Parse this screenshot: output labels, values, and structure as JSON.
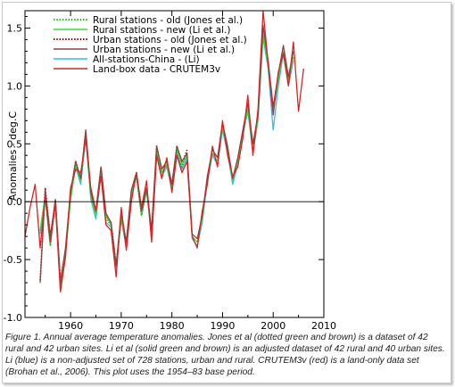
{
  "chart_data": {
    "type": "line",
    "title": "",
    "xlabel": "",
    "ylabel": "Anomalies - deg.C",
    "xlim": [
      1951,
      2010
    ],
    "ylim": [
      -1.0,
      1.65
    ],
    "x_ticks": [
      1960,
      1970,
      1980,
      1990,
      2000,
      2010
    ],
    "y_ticks": [
      -1.0,
      -0.5,
      0.0,
      0.5,
      1.0,
      1.5
    ],
    "x_tick_labels": [
      "1960",
      "1970",
      "1980",
      "1990",
      "2000",
      "2010"
    ],
    "y_tick_labels": [
      "-1.0",
      "-0.5",
      "0.0",
      "0.5",
      "1.0",
      "1.5"
    ],
    "zero_line": true,
    "legend_position": "top-left",
    "series": [
      {
        "name": "Rural stations - old (Jones et al.)",
        "color": "#00cc00",
        "style": "dotted",
        "x": [
          1954,
          1955,
          1956,
          1957,
          1958,
          1959,
          1960,
          1961,
          1962,
          1963,
          1964,
          1965,
          1966,
          1967,
          1968,
          1969,
          1970,
          1971,
          1972,
          1973,
          1974,
          1975,
          1976,
          1977,
          1978,
          1979,
          1980,
          1981,
          1982,
          1983
        ],
        "y": [
          -0.25,
          0.05,
          -0.38,
          0.02,
          -0.72,
          -0.45,
          0.05,
          0.33,
          0.18,
          0.58,
          0.05,
          -0.1,
          0.28,
          -0.15,
          -0.2,
          -0.55,
          -0.15,
          -0.38,
          0.05,
          0.22,
          -0.12,
          0.1,
          -0.3,
          0.45,
          0.25,
          0.32,
          0.12,
          0.45,
          0.3,
          0.42
        ]
      },
      {
        "name": "Rural stations - new (Li et al.)",
        "color": "#33dd33",
        "style": "solid",
        "x": [
          1954,
          1955,
          1956,
          1957,
          1958,
          1959,
          1960,
          1961,
          1962,
          1963,
          1964,
          1965,
          1966,
          1967,
          1968,
          1969,
          1970,
          1971,
          1972,
          1973,
          1974,
          1975,
          1976,
          1977,
          1978,
          1979,
          1980,
          1981,
          1982,
          1983,
          1984,
          1985,
          1986,
          1987,
          1988,
          1989,
          1990,
          1991,
          1992,
          1993,
          1994,
          1995,
          1996,
          1997,
          1998,
          1999,
          2000,
          2001,
          2002,
          2003,
          2004
        ],
        "y": [
          -0.25,
          0.05,
          -0.35,
          0.0,
          -0.7,
          -0.45,
          0.02,
          0.32,
          0.18,
          0.58,
          0.05,
          -0.12,
          0.28,
          -0.12,
          -0.2,
          -0.55,
          -0.12,
          -0.38,
          0.08,
          0.25,
          -0.1,
          0.12,
          -0.28,
          0.45,
          0.25,
          0.32,
          0.12,
          0.45,
          0.32,
          0.4,
          -0.3,
          -0.35,
          -0.15,
          0.2,
          0.42,
          0.35,
          0.65,
          0.45,
          0.18,
          0.35,
          0.6,
          0.8,
          0.45,
          0.72,
          1.45,
          1.18,
          0.78,
          1.05,
          1.3,
          1.05,
          1.25
        ]
      },
      {
        "name": "Urban stations - old (Jones et al.)",
        "color": "#990000",
        "style": "dotted",
        "x": [
          1954,
          1955,
          1956,
          1957,
          1958,
          1959,
          1960,
          1961,
          1962,
          1963,
          1964,
          1965,
          1966,
          1967,
          1968,
          1969,
          1970,
          1971,
          1972,
          1973,
          1974,
          1975,
          1976,
          1977,
          1978,
          1979,
          1980,
          1981,
          1982,
          1983
        ],
        "y": [
          -0.68,
          0.12,
          -0.3,
          0.0,
          -0.68,
          -0.42,
          0.08,
          0.35,
          0.2,
          0.6,
          0.08,
          -0.08,
          0.3,
          -0.12,
          -0.18,
          -0.55,
          -0.12,
          -0.35,
          0.08,
          0.25,
          -0.1,
          0.12,
          -0.25,
          0.48,
          0.28,
          0.35,
          0.15,
          0.48,
          0.32,
          0.45
        ]
      },
      {
        "name": "Urban stations - new (Li et al.)",
        "color": "#884444",
        "style": "solid",
        "x": [
          1954,
          1955,
          1956,
          1957,
          1958,
          1959,
          1960,
          1961,
          1962,
          1963,
          1964,
          1965,
          1966,
          1967,
          1968,
          1969,
          1970,
          1971,
          1972,
          1973,
          1974,
          1975,
          1976,
          1977,
          1978,
          1979,
          1980,
          1981,
          1982,
          1983,
          1984,
          1985,
          1986,
          1987,
          1988,
          1989,
          1990,
          1991,
          1992,
          1993,
          1994,
          1995,
          1996,
          1997,
          1998,
          1999,
          2000,
          2001,
          2002,
          2003,
          2004
        ],
        "y": [
          -0.7,
          0.1,
          -0.3,
          0.02,
          -0.7,
          -0.4,
          0.08,
          0.35,
          0.2,
          0.62,
          0.08,
          -0.08,
          0.3,
          -0.1,
          -0.18,
          -0.55,
          -0.1,
          -0.35,
          0.1,
          0.25,
          -0.08,
          0.12,
          -0.25,
          0.48,
          0.28,
          0.35,
          0.15,
          0.48,
          0.35,
          0.42,
          -0.28,
          -0.32,
          -0.12,
          0.22,
          0.45,
          0.38,
          0.68,
          0.48,
          0.2,
          0.38,
          0.62,
          0.85,
          0.5,
          0.75,
          1.52,
          1.22,
          0.82,
          1.1,
          1.35,
          1.08,
          1.3
        ]
      },
      {
        "name": "All-stations-China - (Li)",
        "color": "#33bbee",
        "style": "solid",
        "x": [
          1954,
          1955,
          1956,
          1957,
          1958,
          1959,
          1960,
          1961,
          1962,
          1963,
          1964,
          1965,
          1966,
          1967,
          1968,
          1969,
          1970,
          1971,
          1972,
          1973,
          1974,
          1975,
          1976,
          1977,
          1978,
          1979,
          1980,
          1981,
          1982,
          1983,
          1984,
          1985,
          1986,
          1987,
          1988,
          1989,
          1990,
          1991,
          1992,
          1993,
          1994,
          1995,
          1996,
          1997,
          1998,
          1999,
          2000,
          2001,
          2002,
          2003,
          2004
        ],
        "y": [
          -0.28,
          0.02,
          -0.38,
          0.0,
          -0.72,
          -0.45,
          0.02,
          0.3,
          0.15,
          0.55,
          0.02,
          -0.15,
          0.25,
          -0.18,
          -0.22,
          -0.58,
          -0.15,
          -0.4,
          0.05,
          0.22,
          -0.12,
          0.1,
          -0.3,
          0.42,
          0.22,
          0.3,
          0.1,
          0.42,
          0.28,
          0.38,
          -0.32,
          -0.38,
          -0.18,
          0.18,
          0.4,
          0.32,
          0.62,
          0.42,
          0.15,
          0.32,
          0.58,
          0.78,
          0.42,
          0.7,
          1.42,
          1.15,
          0.62,
          1.0,
          1.28,
          1.0,
          1.22
        ]
      },
      {
        "name": "Land-box data - CRUTEM3v",
        "color": "#dd2222",
        "style": "solid",
        "x": [
          1951,
          1952,
          1953,
          1954,
          1955,
          1956,
          1957,
          1958,
          1959,
          1960,
          1961,
          1962,
          1963,
          1964,
          1965,
          1966,
          1967,
          1968,
          1969,
          1970,
          1971,
          1972,
          1973,
          1974,
          1975,
          1976,
          1977,
          1978,
          1979,
          1980,
          1981,
          1982,
          1983,
          1984,
          1985,
          1986,
          1987,
          1988,
          1989,
          1990,
          1991,
          1992,
          1993,
          1994,
          1995,
          1996,
          1997,
          1998,
          1999,
          2000,
          2001,
          2002,
          2003,
          2004,
          2005,
          2006
        ],
        "y": [
          -0.3,
          -0.05,
          0.15,
          -0.4,
          0.05,
          -0.35,
          -0.02,
          -0.78,
          -0.48,
          0.12,
          0.28,
          0.25,
          0.55,
          0.12,
          -0.08,
          0.22,
          -0.2,
          -0.25,
          -0.65,
          -0.05,
          -0.42,
          0.0,
          0.25,
          -0.05,
          0.18,
          -0.35,
          0.4,
          0.2,
          0.38,
          0.08,
          0.4,
          0.25,
          0.35,
          -0.3,
          -0.4,
          -0.08,
          0.15,
          0.48,
          0.3,
          0.7,
          0.4,
          0.22,
          0.3,
          0.55,
          0.92,
          0.4,
          0.8,
          1.65,
          1.2,
          0.75,
          1.12,
          1.28,
          1.0,
          1.38,
          0.78,
          1.15
        ]
      }
    ]
  },
  "caption": "Figure 1. Annual average temperature anomalies. Jones et al (dotted green and brown) is a dataset of 42 rural and 42 urban sites. Li et al (solid green and brown) is an adjusted dataset of 42 rural and 40 urban sites. Li (blue) is a non-adjusted set of 728 stations, urban and rural. CRUTEM3v (red) is a land-only data set (Brohan et al., 2006). This plot uses the 1954–83 base period."
}
